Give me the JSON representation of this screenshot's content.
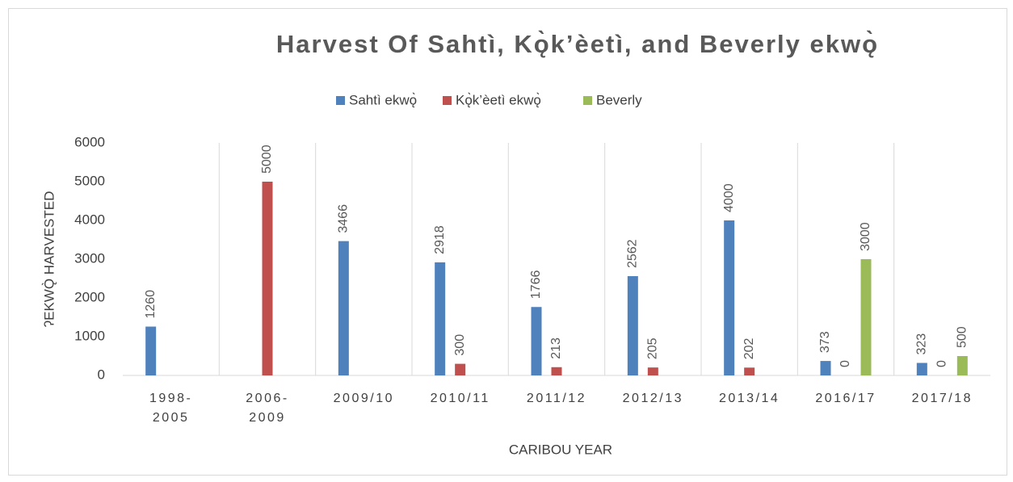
{
  "chart_data": {
    "type": "bar",
    "title": "Harvest Of Sahtì, Kǫ̀k’èetì, and Beverly ekwǫ̀",
    "x_label": "CARIBOU YEAR",
    "y_label": "ʔEKWǪ̀ HARVESTED",
    "categories": [
      "1998-2005",
      "2006-2009",
      "2009/10",
      "2010/11",
      "2011/12",
      "2012/13",
      "2013/14",
      "2016/17",
      "2017/18"
    ],
    "series": [
      {
        "name": "Sahtì ekwǫ̀",
        "color": "#4f81bd",
        "values": [
          1260,
          null,
          3466,
          2918,
          1766,
          2562,
          4000,
          373,
          323
        ]
      },
      {
        "name": "Kǫ̀k’èetì ekwǫ̀",
        "color": "#c0504d",
        "values": [
          null,
          5000,
          null,
          300,
          213,
          205,
          202,
          0,
          0
        ]
      },
      {
        "name": "Beverly",
        "color": "#9bbb59",
        "values": [
          null,
          null,
          null,
          null,
          null,
          null,
          null,
          3000,
          500
        ]
      }
    ],
    "ylim": [
      0,
      6000
    ],
    "yticks": [
      0,
      1000,
      2000,
      3000,
      4000,
      5000,
      6000
    ],
    "legend": "top",
    "grid": "x"
  }
}
